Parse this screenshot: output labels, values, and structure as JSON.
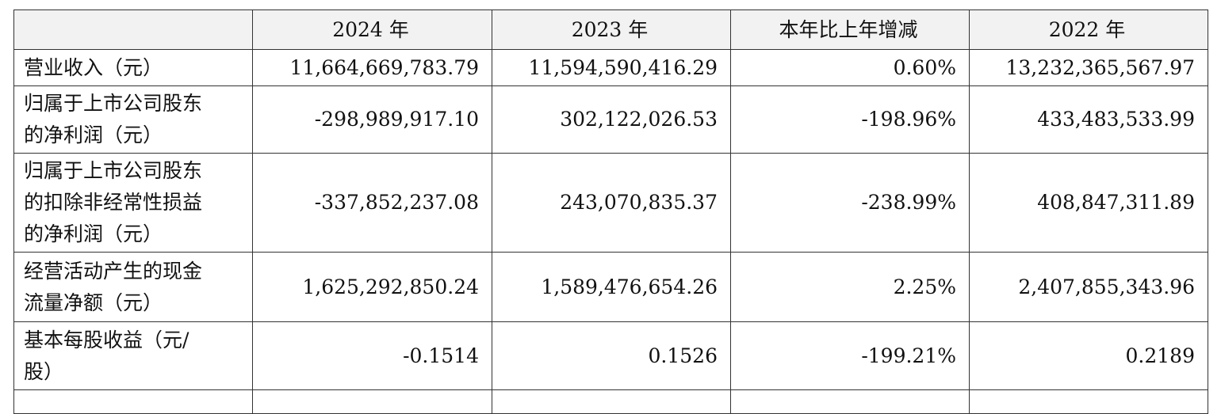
{
  "table": {
    "header": [
      "",
      "2024 年",
      "2023 年",
      "本年比上年增减",
      "2022 年"
    ],
    "rows": [
      [
        "营业收入（元）",
        "11,664,669,783.79",
        "11,594,590,416.29",
        "0.60%",
        "13,232,365,567.97"
      ],
      [
        "归属于上市公司股东的净利润（元）",
        "-298,989,917.10",
        "302,122,026.53",
        "-198.96%",
        "433,483,533.99"
      ],
      [
        "归属于上市公司股东的扣除非经常性损益的净利润（元）",
        "-337,852,237.08",
        "243,070,835.37",
        "-238.99%",
        "408,847,311.89"
      ],
      [
        "经营活动产生的现金流量净额（元）",
        "1,625,292,850.24",
        "1,589,476,654.26",
        "2.25%",
        "2,407,855,343.96"
      ],
      [
        "基本每股收益（元/股）",
        "-0.1514",
        "0.1526",
        "-199.21%",
        "0.2189"
      ]
    ]
  }
}
